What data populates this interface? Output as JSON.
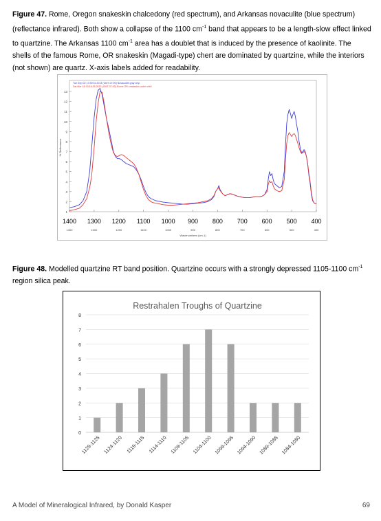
{
  "figure47": {
    "label": "Figure 47.",
    "caption_p1": "  Rome, Oregon snakeskin chalcedony (red spectrum), and Arkansas novaculite (blue spectrum) (reflectance infrared).  Both show a collapse of the 1100 cm",
    "sup1": "-1",
    "caption_p2": " band that appears to be a length-slow effect linked to quartzine.  The Arkansas 1100 cm",
    "sup2": "-1",
    "caption_p3": " area has a doublet that is induced by the presence of kaolinite.  The shells of the famous Rome, OR snakeskin (Magadi-type) chert are dominated by quartzine, while the interiors (not shown) are quartz.  X-axis labels added for readability.",
    "legend": [
      "Tue Sep 02 17:59:31 2014 (GMT-07:00) Novaculite gray chip",
      "Sat Mar 16 00:18:35 2013 (GMT-07:00) Rome OR snakeskin outer shell"
    ],
    "ylabel": "% Reflectance",
    "xlabel": "Wavenumbers (cm-1)",
    "small_x_ticks": [
      "1400",
      "1300",
      "1200",
      "1100",
      "1000",
      "900",
      "800",
      "700",
      "600",
      "500",
      "400"
    ],
    "big_x_ticks": [
      "1400",
      "1300",
      "1200",
      "1100",
      "1000",
      "900",
      "800",
      "700",
      "600",
      "500",
      "400"
    ],
    "y_ticks": [
      "1",
      "2",
      "3",
      "4",
      "5",
      "6",
      "7",
      "8",
      "9",
      "10",
      "11",
      "12",
      "13"
    ],
    "colors": {
      "red": "#e03c3c",
      "blue": "#3f3fd6"
    },
    "chart_data": {
      "type": "line",
      "xlabel": "Wavenumbers (cm-1)",
      "ylabel": "% Reflectance",
      "xlim": [
        1400,
        400
      ],
      "ylim": [
        1,
        13
      ],
      "series": [
        {
          "name": "Tue Sep 02 17:59:31 2014 (GMT-07:00) Novaculite gray chip",
          "color": "#3f3fd6",
          "x": [
            1400,
            1380,
            1360,
            1345,
            1330,
            1318,
            1310,
            1300,
            1292,
            1284,
            1276,
            1268,
            1260,
            1250,
            1240,
            1230,
            1222,
            1214,
            1206,
            1198,
            1190,
            1180,
            1170,
            1160,
            1150,
            1140,
            1130,
            1120,
            1110,
            1100,
            1090,
            1080,
            1070,
            1060,
            1050,
            1040,
            1030,
            1020,
            1000,
            980,
            960,
            940,
            920,
            900,
            880,
            860,
            840,
            825,
            815,
            808,
            800,
            795,
            790,
            780,
            770,
            760,
            750,
            740,
            730,
            720,
            710,
            700,
            690,
            680,
            670,
            660,
            650,
            640,
            630,
            620,
            610,
            600,
            595,
            590,
            585,
            580,
            575,
            570,
            560,
            550,
            540,
            530,
            525,
            520,
            515,
            510,
            505,
            500,
            495,
            490,
            485,
            480,
            475,
            470,
            465,
            460,
            455,
            450,
            445,
            440,
            435,
            430,
            425,
            420,
            415,
            410,
            405,
            400
          ],
          "y": [
            1.4,
            1.5,
            1.7,
            2.1,
            3.0,
            5.0,
            7.4,
            10.4,
            12.2,
            13.1,
            13.3,
            12.7,
            11.6,
            10.3,
            9.2,
            8.0,
            7.0,
            6.5,
            6.3,
            6.3,
            6.2,
            6.0,
            5.8,
            5.7,
            5.6,
            5.5,
            5.2,
            4.8,
            4.2,
            3.5,
            2.9,
            2.5,
            2.3,
            2.2,
            2.1,
            2.05,
            2.0,
            1.95,
            1.9,
            1.85,
            1.8,
            1.75,
            1.75,
            1.8,
            1.85,
            1.9,
            2.0,
            2.2,
            2.5,
            3.0,
            3.3,
            3.6,
            3.2,
            2.8,
            2.6,
            2.7,
            2.8,
            2.75,
            2.65,
            2.55,
            2.5,
            2.45,
            2.4,
            2.4,
            2.4,
            2.45,
            2.5,
            2.5,
            2.5,
            2.55,
            2.7,
            3.2,
            4.2,
            5.0,
            4.6,
            4.8,
            4.2,
            3.8,
            3.6,
            3.4,
            3.5,
            5.0,
            7.6,
            9.8,
            10.7,
            11.2,
            10.8,
            10.3,
            10.7,
            11.0,
            10.5,
            9.7,
            9.0,
            8.0,
            7.3,
            6.9,
            7.0,
            7.2,
            7.0,
            6.5,
            5.7,
            4.6,
            3.8,
            2.7,
            2.1,
            1.9,
            1.8,
            1.8
          ]
        },
        {
          "name": "Sat Mar 16 00:18:35 2013 (GMT-07:00) Rome OR snakeskin outer shell",
          "color": "#e03c3c",
          "x": [
            1400,
            1380,
            1360,
            1345,
            1330,
            1318,
            1310,
            1300,
            1292,
            1284,
            1276,
            1268,
            1260,
            1250,
            1240,
            1230,
            1222,
            1214,
            1206,
            1198,
            1190,
            1180,
            1170,
            1160,
            1150,
            1140,
            1130,
            1120,
            1110,
            1100,
            1090,
            1080,
            1070,
            1060,
            1050,
            1040,
            1030,
            1020,
            1000,
            980,
            960,
            940,
            920,
            900,
            880,
            860,
            840,
            825,
            815,
            808,
            800,
            795,
            790,
            780,
            770,
            760,
            750,
            740,
            730,
            720,
            710,
            700,
            690,
            680,
            670,
            660,
            650,
            640,
            630,
            620,
            610,
            600,
            595,
            590,
            585,
            580,
            575,
            570,
            560,
            550,
            540,
            530,
            525,
            520,
            515,
            510,
            505,
            500,
            495,
            490,
            485,
            480,
            475,
            470,
            465,
            460,
            455,
            450,
            445,
            440,
            435,
            430,
            425,
            420,
            415,
            410,
            405,
            400
          ],
          "y": [
            1.1,
            1.2,
            1.35,
            1.7,
            2.3,
            3.4,
            4.6,
            7.4,
            10.0,
            11.8,
            13.0,
            12.9,
            11.9,
            10.3,
            8.8,
            7.6,
            6.9,
            6.6,
            6.5,
            6.6,
            6.7,
            6.6,
            6.4,
            6.2,
            6.0,
            5.8,
            5.4,
            4.8,
            4.0,
            3.2,
            2.6,
            2.2,
            2.0,
            1.9,
            1.85,
            1.8,
            1.75,
            1.7,
            1.65,
            1.65,
            1.7,
            1.75,
            1.8,
            1.85,
            1.9,
            2.0,
            2.1,
            2.3,
            2.6,
            3.0,
            3.3,
            3.4,
            3.1,
            2.8,
            2.6,
            2.7,
            2.8,
            2.75,
            2.65,
            2.55,
            2.5,
            2.45,
            2.4,
            2.4,
            2.4,
            2.45,
            2.5,
            2.5,
            2.5,
            2.55,
            2.7,
            3.0,
            3.7,
            4.1,
            3.9,
            4.0,
            3.6,
            3.3,
            3.1,
            3.0,
            3.1,
            4.2,
            6.2,
            7.8,
            8.6,
            8.9,
            8.7,
            8.5,
            8.7,
            8.8,
            8.6,
            8.2,
            7.8,
            7.4,
            7.0,
            6.8,
            6.9,
            7.0,
            6.9,
            6.5,
            5.8,
            4.8,
            4.0,
            2.9,
            2.2,
            1.9,
            1.8,
            1.8
          ]
        }
      ]
    }
  },
  "figure48": {
    "label": "Figure 48.",
    "caption_text": "  Modelled quartzine RT band position.  Quartzine occurs with a strongly depressed 1105-1100 cm",
    "sup": "-1",
    "caption_tail": " region silica peak.",
    "chart_data": {
      "type": "bar",
      "title": "Restrahalen Troughs of Quartzine",
      "categories": [
        "1129-1125",
        "1124-1120",
        "1119-1115",
        "1114-1110",
        "1109-1105",
        "1104-1100",
        "1099-1095",
        "1094-1090",
        "1089-1085",
        "1084-1080"
      ],
      "values": [
        1,
        2,
        3,
        4,
        6,
        7,
        6,
        2,
        2,
        2
      ],
      "ylim": [
        0,
        8
      ],
      "y_ticks": [
        "0",
        "1",
        "2",
        "3",
        "4",
        "5",
        "6",
        "7",
        "8"
      ],
      "bar_color": "#a5a5a5",
      "grid": true
    }
  },
  "footer": {
    "left": "A Model of Mineralogical Infrared, by Donald Kasper",
    "right": "69"
  }
}
